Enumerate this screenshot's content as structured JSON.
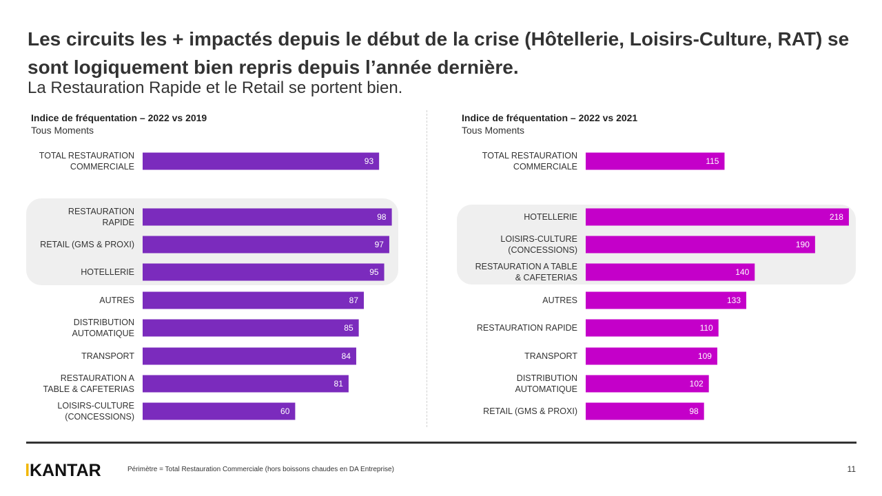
{
  "header": {
    "title": "Les circuits les + impactés depuis le début de la crise (Hôtellerie, Loisirs-Culture, RAT) se sont logiquement bien repris depuis l’année dernière.",
    "subtitle": "La Restauration Rapide et le Retail se portent bien."
  },
  "footer": {
    "logo": "KANTAR",
    "note": "Périmètre = Total Restauration Commerciale  (hors boissons chaudes en DA Entreprise)",
    "page_number": "11"
  },
  "colors": {
    "left_bar": "#7b2bbd",
    "right_bar": "#c400c9",
    "highlight_bg": "#efefef"
  },
  "chart_data": [
    {
      "type": "bar",
      "orientation": "horizontal",
      "title": "Indice de fréquentation – 2022 vs 2019",
      "subtitle": "Tous Moments",
      "categories": [
        [
          "TOTAL RESTAURATION",
          "COMMERCIALE"
        ],
        [
          "RESTAURATION",
          "RAPIDE"
        ],
        [
          "RETAIL (GMS & PROXI)"
        ],
        [
          "HOTELLERIE"
        ],
        [
          "AUTRES"
        ],
        [
          "DISTRIBUTION",
          "AUTOMATIQUE"
        ],
        [
          "TRANSPORT"
        ],
        [
          "RESTAURATION A",
          "TABLE & CAFETERIAS"
        ],
        [
          "LOISIRS-CULTURE",
          "(CONCESSIONS)"
        ]
      ],
      "values": [
        93,
        98,
        97,
        95,
        87,
        85,
        84,
        81,
        60
      ],
      "highlighted": [
        1,
        2,
        3
      ],
      "xlim": [
        0,
        100
      ]
    },
    {
      "type": "bar",
      "orientation": "horizontal",
      "title": "Indice de fréquentation – 2022 vs 2021",
      "subtitle": "Tous Moments",
      "categories": [
        [
          "TOTAL RESTAURATION",
          "COMMERCIALE"
        ],
        [
          "HOTELLERIE"
        ],
        [
          "LOISIRS-CULTURE",
          "(CONCESSIONS)"
        ],
        [
          "RESTAURATION A TABLE",
          "& CAFETERIAS"
        ],
        [
          "AUTRES"
        ],
        [
          "RESTAURATION RAPIDE"
        ],
        [
          "TRANSPORT"
        ],
        [
          "DISTRIBUTION",
          "AUTOMATIQUE"
        ],
        [
          "RETAIL (GMS & PROXI)"
        ]
      ],
      "values": [
        115,
        218,
        190,
        140,
        133,
        110,
        109,
        102,
        98
      ],
      "highlighted": [
        1,
        2,
        3
      ],
      "xlim": [
        0,
        220
      ]
    }
  ]
}
